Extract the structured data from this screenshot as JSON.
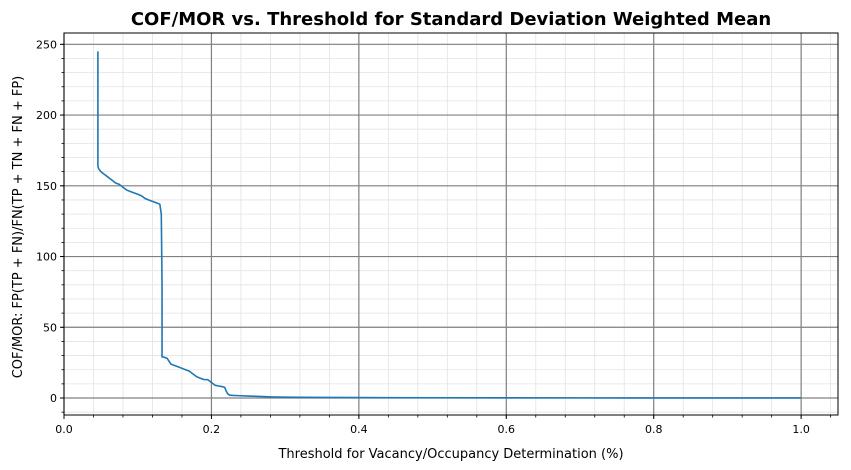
{
  "chart_data": {
    "type": "line",
    "title": "COF/MOR vs. Threshold for Standard Deviation Weighted Mean",
    "xlabel": "Threshold for Vacancy/Occupancy Determination (%)",
    "ylabel": "COF/MOR: FP(TP + FN)/FN(TP + TN + FN + FP)",
    "xlim": [
      0.0,
      1.05
    ],
    "ylim": [
      -12,
      258
    ],
    "x_ticks": [
      0.0,
      0.2,
      0.4,
      0.6,
      0.8,
      1.0
    ],
    "x_tick_labels": [
      "0.0",
      "0.2",
      "0.4",
      "0.6",
      "0.8",
      "1.0"
    ],
    "y_ticks": [
      0,
      50,
      100,
      150,
      200,
      250
    ],
    "y_tick_labels": [
      "0",
      "50",
      "100",
      "150",
      "200",
      "250"
    ],
    "grid": {
      "major": true,
      "minor": true
    },
    "line_color": "#1f77b4",
    "major_grid_color": "#808080",
    "minor_grid_color": "#e3e3e3",
    "series": [
      {
        "x": [
          0.046,
          0.046,
          0.047,
          0.05,
          0.055,
          0.06,
          0.065,
          0.07,
          0.075,
          0.08,
          0.085,
          0.09,
          0.095,
          0.1,
          0.105,
          0.11,
          0.115,
          0.12,
          0.125,
          0.13,
          0.132,
          0.133,
          0.133,
          0.135,
          0.14,
          0.145,
          0.15,
          0.155,
          0.16,
          0.165,
          0.17,
          0.175,
          0.18,
          0.185,
          0.19,
          0.195,
          0.2,
          0.205,
          0.21,
          0.215,
          0.218,
          0.22,
          0.222,
          0.225,
          0.23,
          0.24,
          0.25,
          0.26,
          0.27,
          0.28,
          0.3,
          0.32,
          0.35,
          0.4,
          0.5,
          0.6,
          0.7,
          0.8,
          0.9,
          1.0
        ],
        "y": [
          245,
          164,
          162,
          160,
          158,
          156,
          154,
          152,
          151,
          149,
          147,
          146,
          145,
          144,
          143,
          141,
          140,
          139,
          138,
          137,
          130,
          80,
          29,
          29,
          28,
          24,
          23,
          22,
          21,
          20,
          19,
          17,
          15,
          14,
          13,
          13,
          11,
          9,
          8.5,
          8,
          7.5,
          5,
          3,
          2,
          1.8,
          1.6,
          1.4,
          1.2,
          1.0,
          0.8,
          0.6,
          0.5,
          0.4,
          0.3,
          0.2,
          0.15,
          0.1,
          0.08,
          0.06,
          0.05
        ]
      }
    ]
  }
}
